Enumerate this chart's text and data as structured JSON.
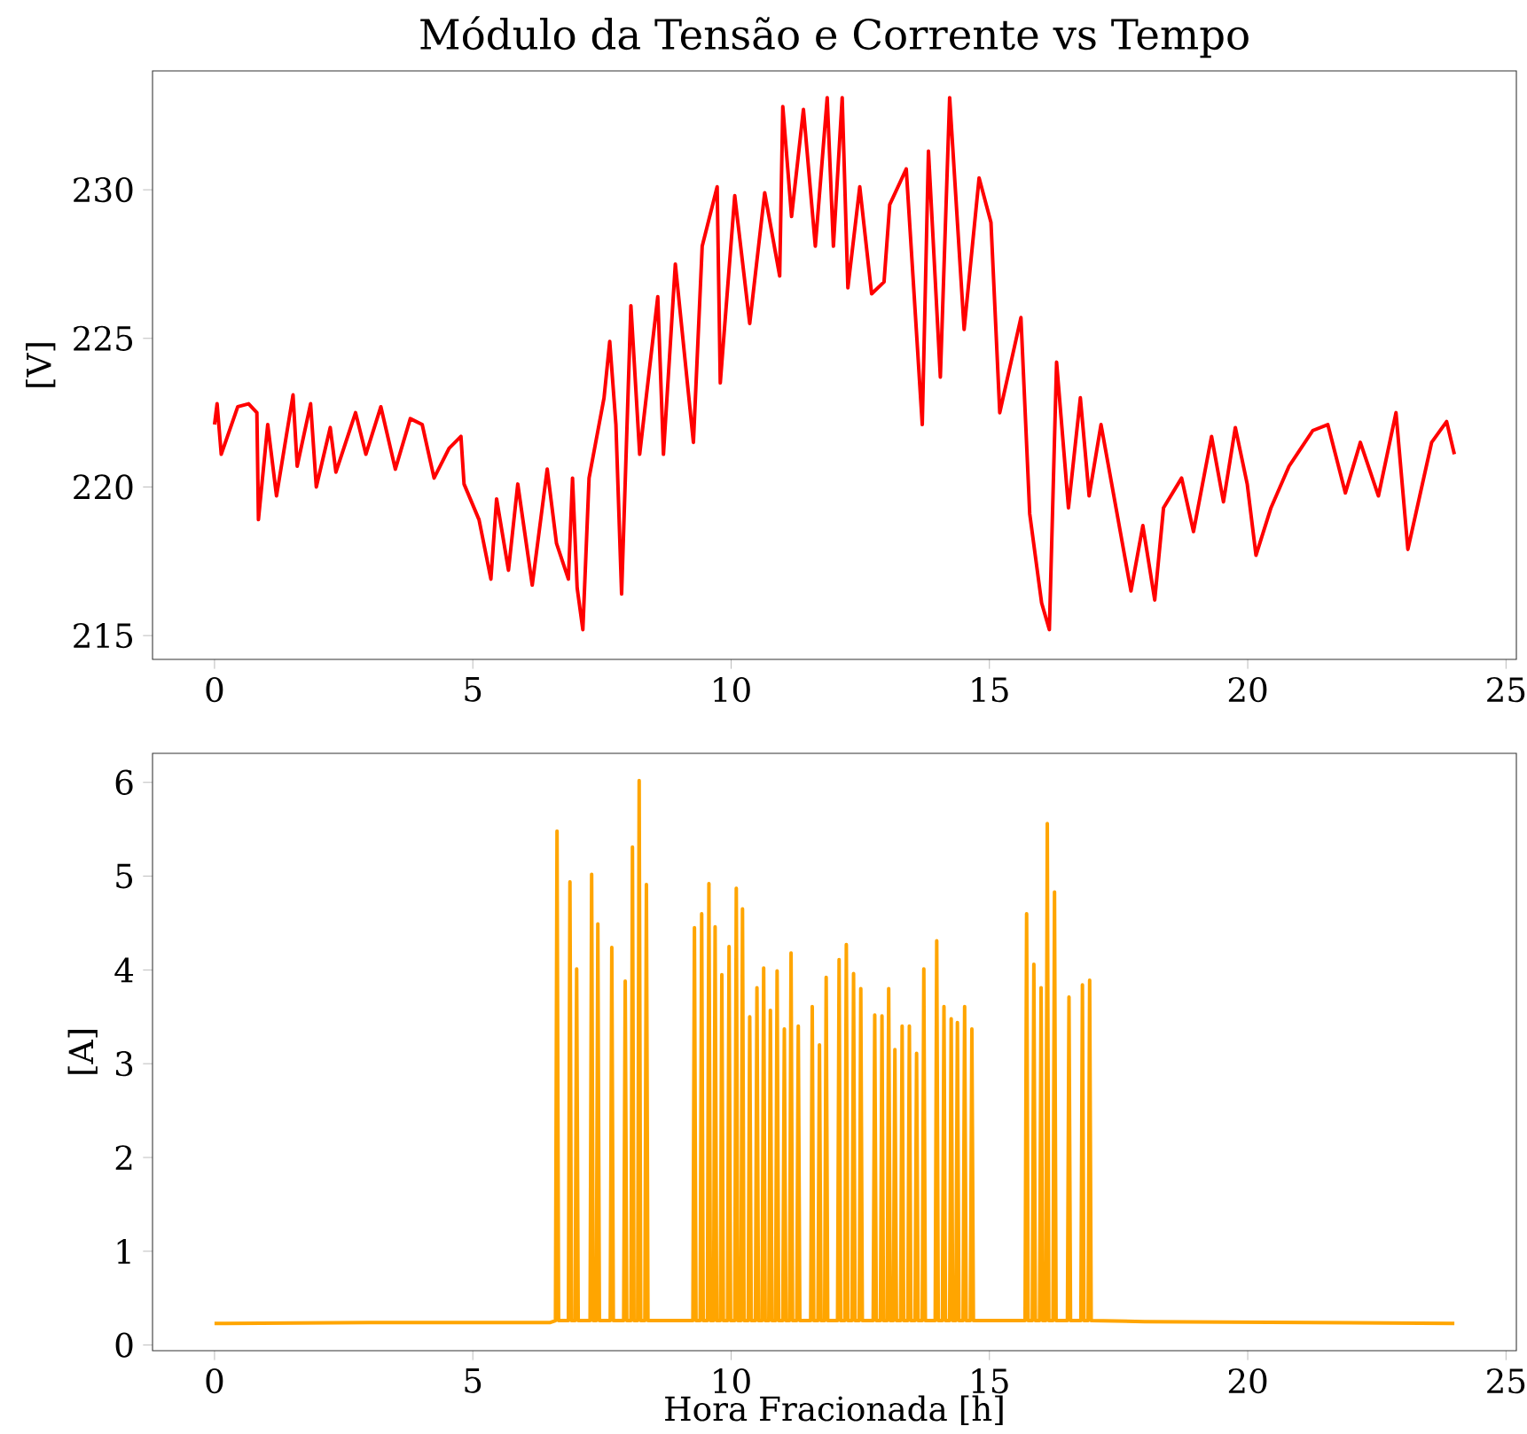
{
  "chart_data": [
    {
      "type": "line",
      "title": "Módulo da Tensão e Corrente vs Tempo",
      "ylabel": "[V]",
      "color": "#ff0000",
      "x": [
        0,
        0.05,
        0.13,
        0.45,
        0.66,
        0.82,
        0.85,
        1.03,
        1.2,
        1.52,
        1.6,
        1.86,
        1.97,
        2.24,
        2.35,
        2.73,
        2.93,
        3.22,
        3.5,
        3.79,
        4.02,
        4.25,
        4.54,
        4.77,
        4.83,
        5.12,
        5.35,
        5.46,
        5.69,
        5.87,
        6.15,
        6.44,
        6.62,
        6.85,
        6.93,
        7.02,
        7.13,
        7.25,
        7.54,
        7.65,
        7.77,
        7.88,
        8.06,
        8.23,
        8.58,
        8.69,
        8.92,
        9.27,
        9.44,
        9.73,
        9.79,
        10.07,
        10.36,
        10.65,
        10.94,
        11.0,
        11.17,
        11.4,
        11.63,
        11.86,
        11.98,
        12.15,
        12.26,
        12.49,
        12.72,
        12.96,
        13.07,
        13.39,
        13.7,
        13.82,
        14.05,
        14.23,
        14.51,
        14.8,
        15.03,
        15.2,
        15.61,
        15.78,
        16.01,
        16.16,
        16.3,
        16.53,
        16.76,
        16.93,
        17.16,
        17.45,
        17.74,
        17.97,
        18.2,
        18.37,
        18.72,
        18.95,
        19.3,
        19.53,
        19.76,
        19.99,
        20.16,
        20.45,
        20.8,
        21.26,
        21.55,
        21.89,
        22.18,
        22.53,
        22.87,
        23.1,
        23.33,
        23.56,
        23.85,
        24.0
      ],
      "values": [
        222.1,
        222.8,
        221.1,
        222.7,
        222.8,
        222.5,
        218.9,
        222.1,
        219.7,
        223.1,
        220.7,
        222.8,
        220.0,
        222.0,
        220.5,
        222.5,
        221.1,
        222.7,
        220.6,
        222.3,
        222.1,
        220.3,
        221.3,
        221.7,
        220.1,
        218.9,
        216.9,
        219.6,
        217.2,
        220.1,
        216.7,
        220.6,
        218.1,
        216.9,
        220.3,
        216.6,
        215.2,
        220.3,
        223.0,
        224.9,
        222.1,
        216.4,
        226.1,
        221.1,
        226.4,
        221.1,
        227.5,
        221.5,
        228.1,
        230.1,
        223.5,
        229.8,
        225.5,
        229.9,
        227.1,
        232.8,
        229.1,
        232.7,
        228.1,
        233.1,
        228.1,
        233.1,
        226.7,
        230.1,
        226.5,
        226.9,
        229.5,
        230.7,
        222.1,
        231.3,
        223.7,
        233.1,
        225.3,
        230.4,
        228.9,
        222.5,
        225.7,
        219.1,
        216.1,
        215.2,
        224.2,
        219.3,
        223.0,
        219.7,
        222.1,
        219.3,
        216.5,
        218.7,
        216.2,
        219.3,
        220.3,
        218.5,
        221.7,
        219.5,
        222.0,
        220.1,
        217.7,
        219.3,
        220.7,
        221.9,
        222.1,
        219.8,
        221.5,
        219.7,
        222.5,
        217.9,
        219.7,
        221.5,
        222.2,
        221.1
      ],
      "xlim": [
        -1.2,
        25.2
      ],
      "ylim": [
        214.2,
        234.0
      ],
      "xticks": [
        0,
        5,
        10,
        15,
        20,
        25
      ],
      "yticks": [
        215,
        220,
        225,
        230
      ]
    },
    {
      "type": "line",
      "xlabel": "Hora Fracionada [h]",
      "ylabel": "[A]",
      "color": "#ffa500",
      "x": [
        0,
        3,
        6.5,
        6.6,
        6.63,
        6.66,
        6.85,
        6.88,
        6.91,
        6.98,
        7.01,
        7.04,
        7.27,
        7.3,
        7.33,
        7.39,
        7.42,
        7.45,
        7.66,
        7.69,
        7.72,
        7.92,
        7.95,
        7.98,
        8.06,
        8.09,
        8.12,
        8.19,
        8.22,
        8.25,
        8.33,
        8.36,
        8.39,
        9.26,
        9.29,
        9.32,
        9.4,
        9.43,
        9.46,
        9.54,
        9.57,
        9.6,
        9.66,
        9.69,
        9.72,
        9.79,
        9.82,
        9.85,
        9.93,
        9.96,
        9.99,
        10.07,
        10.1,
        10.13,
        10.19,
        10.22,
        10.25,
        10.33,
        10.36,
        10.39,
        10.47,
        10.5,
        10.53,
        10.6,
        10.63,
        10.66,
        10.73,
        10.76,
        10.79,
        10.86,
        10.89,
        10.92,
        11.0,
        11.03,
        11.06,
        11.13,
        11.16,
        11.19,
        11.27,
        11.3,
        11.33,
        11.54,
        11.57,
        11.6,
        11.68,
        11.71,
        11.74,
        11.81,
        11.84,
        11.87,
        12.06,
        12.09,
        12.12,
        12.2,
        12.23,
        12.26,
        12.34,
        12.37,
        12.4,
        12.48,
        12.51,
        12.54,
        12.75,
        12.78,
        12.81,
        12.89,
        12.92,
        12.95,
        13.02,
        13.05,
        13.08,
        13.14,
        13.17,
        13.2,
        13.28,
        13.31,
        13.34,
        13.42,
        13.45,
        13.48,
        13.56,
        13.59,
        13.62,
        13.7,
        13.73,
        13.76,
        13.95,
        13.98,
        14.01,
        14.09,
        14.12,
        14.15,
        14.23,
        14.26,
        14.29,
        14.35,
        14.38,
        14.41,
        14.49,
        14.52,
        14.55,
        14.63,
        14.66,
        14.69,
        15.69,
        15.72,
        15.75,
        15.83,
        15.86,
        15.89,
        15.97,
        16.0,
        16.03,
        16.09,
        16.12,
        16.15,
        16.23,
        16.26,
        16.29,
        16.51,
        16.54,
        16.57,
        16.77,
        16.8,
        16.83,
        16.91,
        16.94,
        16.97,
        18,
        24
      ],
      "values": [
        0.23,
        0.24,
        0.24,
        0.26,
        5.48,
        0.26,
        0.26,
        4.94,
        0.26,
        0.26,
        4.01,
        0.26,
        0.26,
        5.02,
        0.26,
        0.26,
        4.49,
        0.26,
        0.26,
        4.24,
        0.26,
        0.26,
        3.88,
        0.26,
        0.26,
        5.31,
        0.26,
        0.26,
        6.02,
        0.26,
        0.26,
        4.91,
        0.26,
        0.26,
        4.45,
        0.26,
        0.26,
        4.6,
        0.26,
        0.26,
        4.92,
        0.26,
        0.26,
        4.46,
        0.26,
        0.26,
        3.95,
        0.26,
        0.26,
        4.25,
        0.26,
        0.26,
        4.87,
        0.26,
        0.26,
        4.65,
        0.26,
        0.26,
        3.5,
        0.26,
        0.26,
        3.81,
        0.26,
        0.26,
        4.02,
        0.26,
        0.26,
        3.57,
        0.26,
        0.26,
        3.99,
        0.26,
        0.26,
        3.37,
        0.26,
        0.26,
        4.18,
        0.26,
        0.26,
        3.4,
        0.26,
        0.26,
        3.61,
        0.26,
        0.26,
        3.2,
        0.26,
        0.26,
        3.92,
        0.26,
        0.26,
        4.11,
        0.26,
        0.26,
        4.27,
        0.26,
        0.26,
        3.96,
        0.26,
        0.26,
        3.8,
        0.26,
        0.26,
        3.52,
        0.26,
        0.26,
        3.51,
        0.26,
        0.26,
        3.8,
        0.26,
        0.26,
        3.15,
        0.26,
        0.26,
        3.4,
        0.26,
        0.26,
        3.4,
        0.26,
        0.26,
        3.11,
        0.26,
        0.26,
        4.01,
        0.26,
        0.26,
        4.31,
        0.26,
        0.26,
        3.61,
        0.26,
        0.26,
        3.48,
        0.26,
        0.26,
        3.44,
        0.26,
        0.26,
        3.61,
        0.26,
        0.26,
        3.37,
        0.26,
        0.26,
        4.6,
        0.26,
        0.26,
        4.06,
        0.26,
        0.26,
        3.81,
        0.26,
        0.26,
        5.56,
        0.26,
        0.26,
        4.83,
        0.26,
        0.26,
        3.71,
        0.26,
        0.26,
        3.84,
        0.26,
        0.26,
        3.89,
        0.26,
        0.25,
        0.23
      ],
      "xlim": [
        -1.2,
        25.2
      ],
      "ylim": [
        -0.06,
        6.31
      ],
      "xticks": [
        0,
        5,
        10,
        15,
        20,
        25
      ],
      "yticks": [
        0,
        1,
        2,
        3,
        4,
        5,
        6
      ]
    }
  ]
}
